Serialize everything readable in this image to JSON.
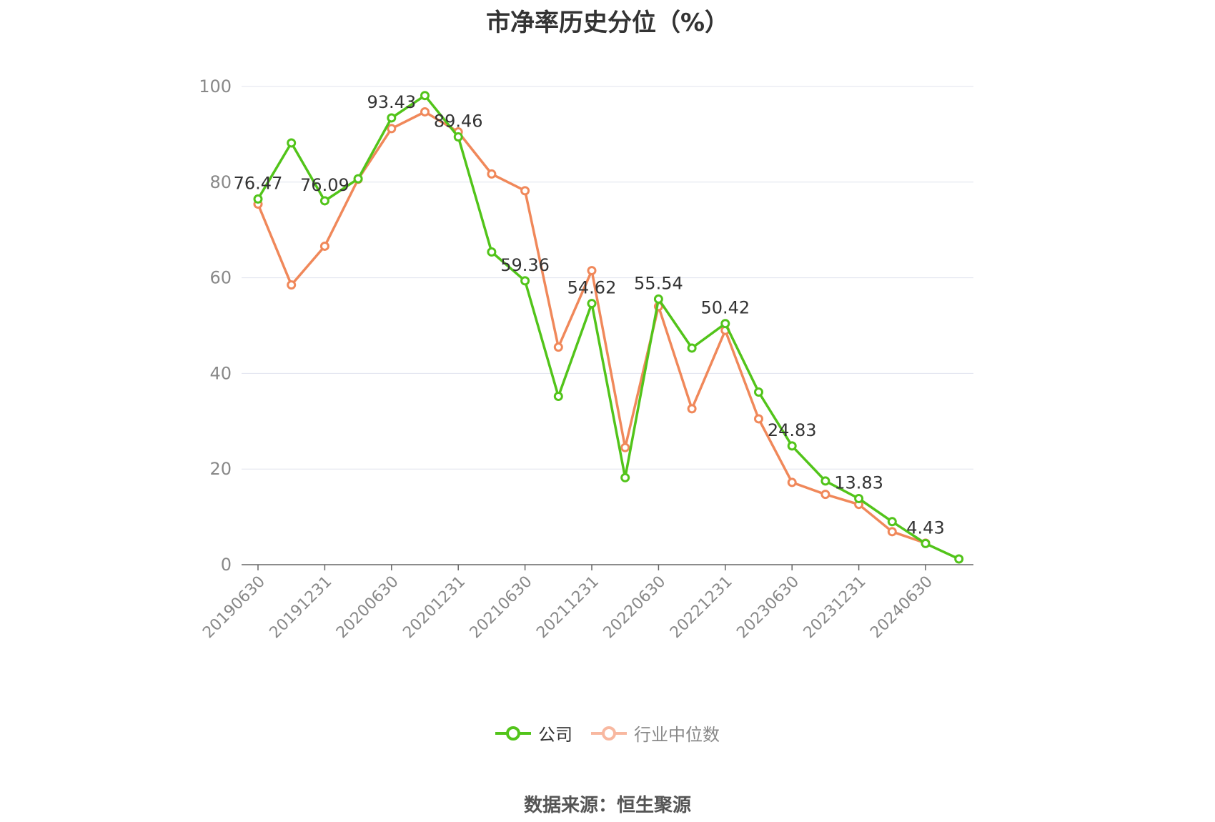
{
  "title": "市净率历史分位（%）",
  "source": "数据来源：恒生聚源",
  "legend": {
    "company": "公司",
    "industry": "行业中位数"
  },
  "colors": {
    "company": "#52c41a",
    "industry": "#f0885a",
    "industry_legend": "#f8b8a0",
    "grid": "#e0e3ee",
    "axis": "#666666",
    "tick_label": "#888888",
    "data_label": "#333333"
  },
  "chart_data": {
    "type": "line",
    "title": "市净率历史分位（%）",
    "xlabel": "",
    "ylabel": "",
    "ylim": [
      0,
      100
    ],
    "yticks": [
      "0",
      "20",
      "40",
      "60",
      "80",
      "100"
    ],
    "x": [
      "20190630",
      "20190930",
      "20191231",
      "20200331",
      "20200630",
      "20200930",
      "20201231",
      "20210331",
      "20210630",
      "20210930",
      "20211231",
      "20220331",
      "20220630",
      "20220930",
      "20221231",
      "20230331",
      "20230630",
      "20230930",
      "20231231",
      "20240331",
      "20240630",
      "20240930"
    ],
    "x_tick_labels": [
      "20190630",
      "20191231",
      "20200630",
      "20201231",
      "20210630",
      "20211231",
      "20220630",
      "20221231",
      "20230630",
      "20231231",
      "20240630"
    ],
    "grid": true,
    "legend_position": "bottom",
    "series": [
      {
        "name": "公司",
        "values": [
          76.47,
          88.2,
          76.09,
          80.7,
          93.43,
          98.1,
          89.46,
          65.4,
          59.36,
          35.2,
          54.62,
          18.2,
          55.54,
          45.3,
          50.42,
          36.1,
          24.83,
          17.5,
          13.83,
          9.0,
          4.43,
          1.2
        ],
        "data_labels": [
          "76.47",
          "",
          "76.09",
          "",
          "93.43",
          "",
          "89.46",
          "",
          "59.36",
          "",
          "54.62",
          "",
          "55.54",
          "",
          "50.42",
          "",
          "24.83",
          "",
          "13.83",
          "",
          "4.43",
          ""
        ]
      },
      {
        "name": "行业中位数",
        "values": [
          75.4,
          58.5,
          66.6,
          80.6,
          91.2,
          94.7,
          90.5,
          81.7,
          78.2,
          45.5,
          61.5,
          24.5,
          54.0,
          32.6,
          49.0,
          30.5,
          17.2,
          14.7,
          12.6,
          6.9,
          4.5,
          null
        ]
      }
    ]
  }
}
